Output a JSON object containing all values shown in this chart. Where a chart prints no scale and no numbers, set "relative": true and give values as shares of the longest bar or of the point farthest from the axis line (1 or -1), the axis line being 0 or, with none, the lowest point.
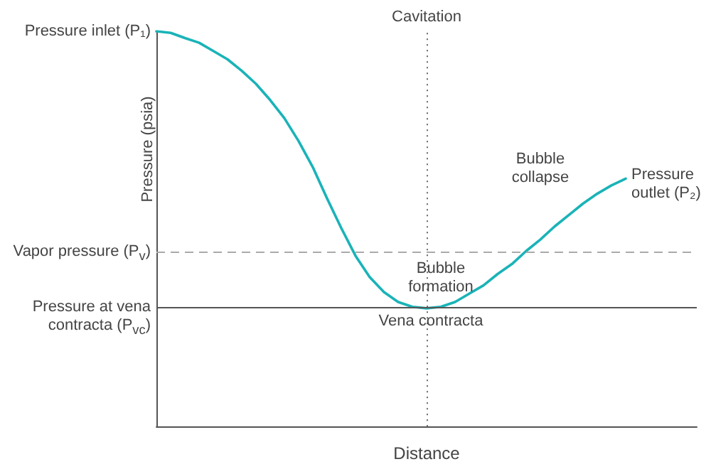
{
  "chart_data": {
    "type": "line",
    "relative": true,
    "xlabel": "Distance",
    "ylabel": "Pressure (psia)",
    "categories": [
      null,
      null,
      null,
      null,
      null,
      null,
      null,
      null,
      null,
      null,
      null,
      null,
      null,
      null,
      null,
      null,
      null,
      null,
      null,
      null,
      null,
      null,
      null,
      null,
      null,
      null,
      null,
      null,
      null,
      null,
      null,
      null,
      null,
      null,
      null,
      null,
      null,
      null,
      null
    ],
    "series": [
      {
        "color": "#1ab3b8",
        "values": [
          1.0,
          0.996,
          0.983,
          0.971,
          0.95,
          0.929,
          0.9,
          0.867,
          0.826,
          0.78,
          0.722,
          0.656,
          0.577,
          0.502,
          0.432,
          0.378,
          0.34,
          0.315,
          0.303,
          0.299,
          0.303,
          0.315,
          0.336,
          0.357,
          0.386,
          0.411,
          0.444,
          0.473,
          0.506,
          0.535,
          0.564,
          0.589,
          0.61,
          0.627,
          null,
          null,
          null,
          null,
          null
        ]
      }
    ],
    "marker": "none",
    "line_style": "solid",
    "grid": false,
    "ref_lines": [
      {
        "axis": "y",
        "value": 0.44,
        "label": "Vapor pressure (P$_{v}$)",
        "color": "#aaaaaa",
        "line_style": "dashed"
      },
      {
        "axis": "y",
        "value": 0.3,
        "label": "Pressure at vena contracta (P$_{vc}$)",
        "color": "#555555",
        "line_style": "solid"
      }
    ],
    "annotations": [
      "Pressure inlet (P₁)",
      "Pressure outlet (P₂)",
      "Bubble formation",
      "Bubble collapse",
      "Vena contracta",
      "Cavitation"
    ]
  }
}
